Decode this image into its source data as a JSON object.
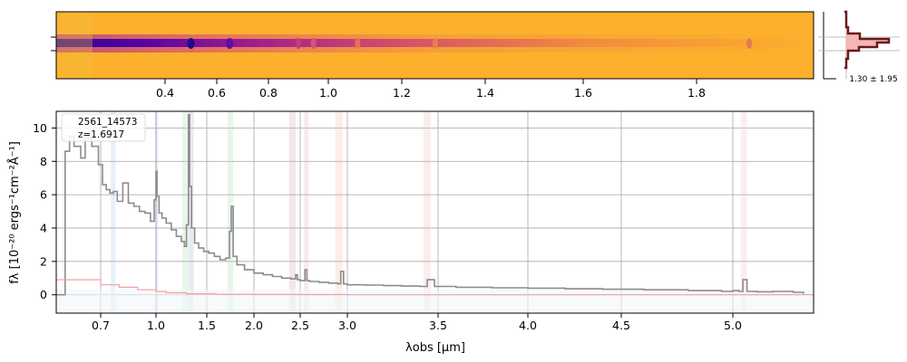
{
  "chart_data": [
    {
      "type": "heatmap",
      "panel": "2d-spectrum",
      "x_ticks": [
        "0.4",
        "0.6",
        "0.8",
        "1.0",
        "1.2",
        "1.4",
        "1.6",
        "1.8"
      ],
      "x_tick_values": [
        0.4,
        0.6,
        0.8,
        1.0,
        1.2,
        1.4,
        1.6,
        1.8
      ],
      "xlim": [
        0.2,
        2.0
      ],
      "colormap": "plasma",
      "trace_features_um": [
        0.5,
        0.65,
        0.9,
        0.95,
        1.08,
        1.28,
        1.89
      ]
    },
    {
      "type": "line",
      "panel": "spatial-profile",
      "caption": "1.30 ± 1.95",
      "fill_color": "#f4b6b6",
      "line_color": "#6b1a1a"
    },
    {
      "type": "line",
      "panel": "1d-spectrum",
      "legend": [
        "2561_14573",
        "z=1.6917"
      ],
      "xlabel": "λobs [μm]",
      "ylabel": "fλ [10⁻²⁰ ergs⁻¹cm⁻²Å⁻¹]",
      "xlim": [
        0.6,
        5.4
      ],
      "ylim": [
        -1.1,
        11
      ],
      "x_ticks": [
        "0.7",
        "1.0",
        "1.5",
        "2.0",
        "2.5",
        "3.0",
        "3.5",
        "4.0",
        "4.5",
        "5.0"
      ],
      "x_tick_values": [
        0.7,
        1.0,
        1.5,
        2.0,
        2.5,
        3.0,
        3.5,
        4.0,
        4.5,
        5.0
      ],
      "y_ticks": [
        "0",
        "2",
        "4",
        "6",
        "8",
        "10"
      ],
      "y_tick_values": [
        0,
        2,
        4,
        6,
        8,
        10
      ],
      "grid": true,
      "series": [
        {
          "color": "#8c8c8c",
          "x": [
            0.6,
            0.62,
            0.63,
            0.64,
            0.655,
            0.665,
            0.68,
            0.695,
            0.71,
            0.73,
            0.75,
            0.77,
            0.79,
            0.82,
            0.85,
            0.88,
            0.91,
            0.94,
            0.97,
            0.99,
            1.0,
            1.01,
            1.03,
            1.06,
            1.1,
            1.15,
            1.2,
            1.25,
            1.28,
            1.3,
            1.32,
            1.33,
            1.35,
            1.38,
            1.42,
            1.47,
            1.52,
            1.58,
            1.64,
            1.7,
            1.74,
            1.76,
            1.78,
            1.82,
            1.9,
            2.0,
            2.1,
            2.2,
            2.3,
            2.4,
            2.45,
            2.47,
            2.5,
            2.55,
            2.57,
            2.6,
            2.7,
            2.8,
            2.9,
            2.93,
            2.96,
            3.0,
            3.1,
            3.2,
            3.3,
            3.4,
            3.44,
            3.48,
            3.6,
            3.8,
            4.0,
            4.2,
            4.4,
            4.6,
            4.8,
            4.95,
            5.0,
            5.03,
            5.05,
            5.07,
            5.12,
            5.2,
            5.3,
            5.35
          ],
          "y": [
            0,
            8.6,
            9.5,
            8.9,
            8.2,
            9.4,
            8.9,
            7.8,
            6.6,
            6.3,
            6.1,
            6.2,
            5.6,
            6.7,
            5.5,
            5.3,
            5.0,
            4.9,
            4.4,
            5.7,
            7.4,
            5.9,
            4.9,
            4.6,
            4.3,
            3.9,
            3.5,
            3.2,
            2.9,
            4.2,
            10.8,
            6.5,
            4.0,
            3.1,
            2.8,
            2.6,
            2.5,
            2.3,
            2.1,
            2.2,
            3.8,
            5.3,
            2.3,
            1.8,
            1.5,
            1.3,
            1.2,
            1.1,
            1.0,
            0.95,
            1.2,
            0.9,
            0.85,
            1.5,
            0.85,
            0.8,
            0.75,
            0.7,
            0.65,
            1.4,
            0.65,
            0.6,
            0.58,
            0.55,
            0.52,
            0.5,
            0.9,
            0.5,
            0.45,
            0.42,
            0.4,
            0.36,
            0.33,
            0.3,
            0.25,
            0.2,
            0.25,
            0.2,
            0.9,
            0.2,
            0.18,
            0.2,
            0.15,
            0.05
          ]
        },
        {
          "color": "#f4a0a0",
          "x": [
            0.6,
            0.7,
            0.8,
            0.9,
            1.0,
            1.1,
            1.3,
            1.6,
            2.0,
            2.5,
            3.0,
            4.0,
            5.0,
            5.4
          ],
          "y": [
            0.9,
            0.6,
            0.45,
            0.3,
            0.2,
            0.12,
            0.06,
            0.03,
            0.02,
            0.01,
            0.0,
            0.0,
            0.0,
            0.0
          ]
        }
      ],
      "line_bands": [
        {
          "x": [
            0.755,
            0.78
          ],
          "color": "#9fc5e8"
        },
        {
          "x": [
            0.995,
            1.012
          ],
          "color": "#9fa8da"
        },
        {
          "x": [
            1.26,
            1.33
          ],
          "color": "#a5d6a7"
        },
        {
          "x": [
            1.33,
            1.37
          ],
          "color": "#9fa8da"
        },
        {
          "x": [
            1.72,
            1.78
          ],
          "color": "#a5d6a7"
        },
        {
          "x": [
            2.38,
            2.45
          ],
          "color": "#c8a2a2"
        },
        {
          "x": [
            2.54,
            2.59
          ],
          "color": "#e6b0b0"
        },
        {
          "x": [
            2.87,
            2.95
          ],
          "color": "#f4b6a6"
        },
        {
          "x": [
            3.42,
            3.46
          ],
          "color": "#f4b6b6"
        },
        {
          "x": [
            5.04,
            5.07
          ],
          "color": "#f4b6c6"
        }
      ]
    }
  ]
}
